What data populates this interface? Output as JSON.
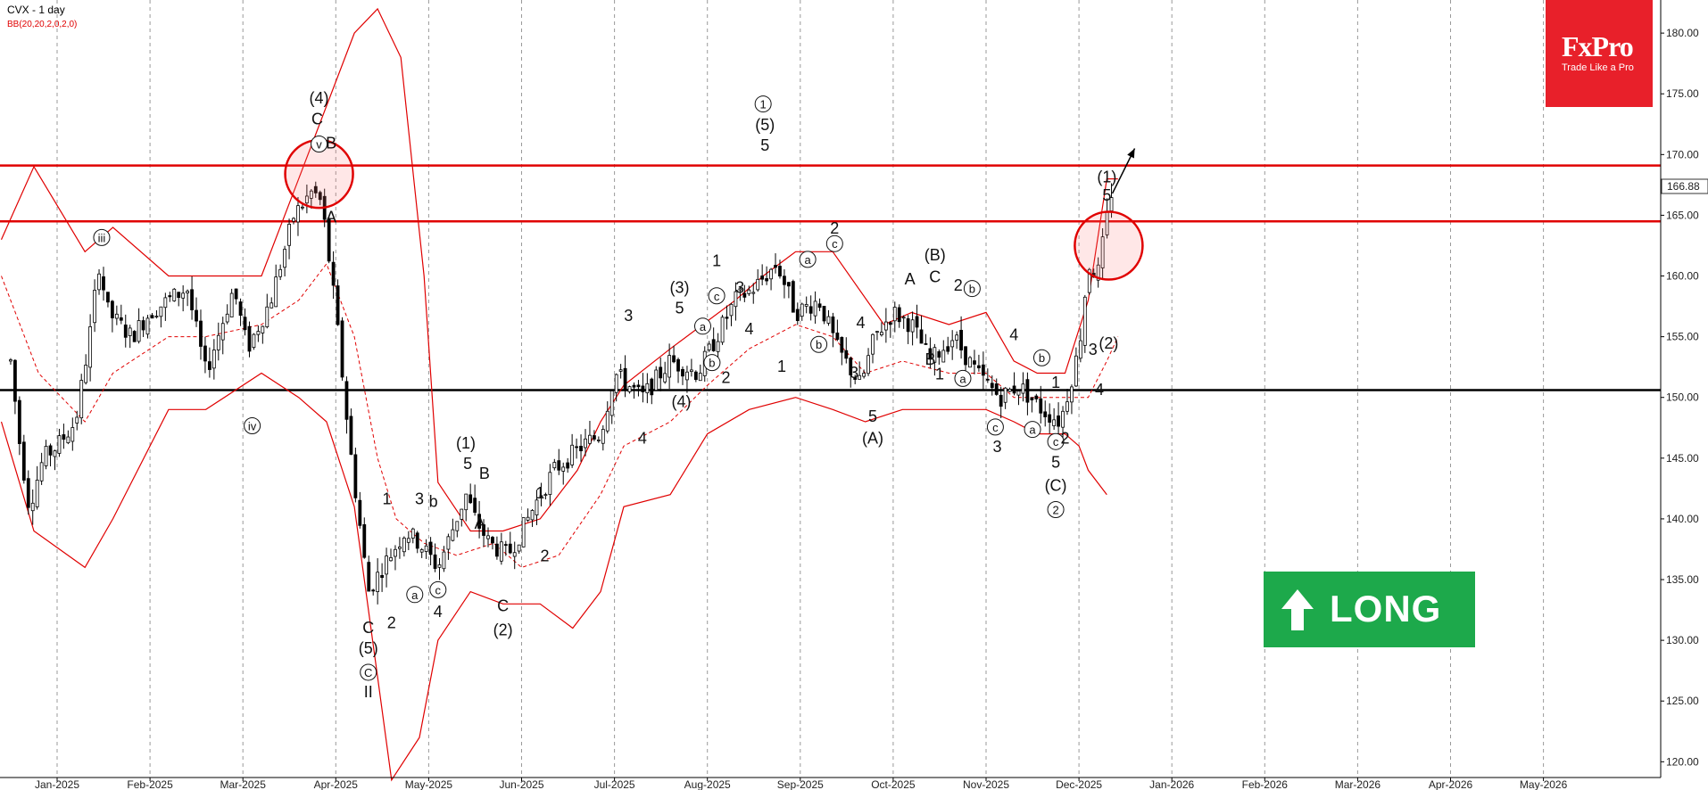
{
  "header": {
    "title": "CVX - 1 day",
    "indicator": "BB(20,20,2,0,2,0)"
  },
  "logo": {
    "brand": "FxPro",
    "tagline": "Trade Like a Pro"
  },
  "signal": {
    "label": "LONG",
    "icon": "up-arrow-icon",
    "color": "#1da94b"
  },
  "price_label": "166.88",
  "chart_data": {
    "type": "candlestick",
    "ylim": [
      118,
      183
    ],
    "y_ticks": [
      "180.00",
      "175.00",
      "170.00",
      "165.00",
      "160.00",
      "155.00",
      "150.00",
      "145.00",
      "140.00",
      "135.00",
      "130.00",
      "125.00",
      "120.00"
    ],
    "x_ticks": [
      "Jan-2025",
      "Feb-2025",
      "Mar-2025",
      "Apr-2025",
      "May-2025",
      "Jun-2025",
      "Jul-2025",
      "Aug-2025",
      "Sep-2025",
      "Oct-2025",
      "Nov-2025",
      "Dec-2025",
      "Jan-2026",
      "Feb-2026",
      "Mar-2026",
      "Apr-2026",
      "May-2026"
    ],
    "horizontal_levels": [
      {
        "value": 169.1,
        "color": "#e00000"
      },
      {
        "value": 164.5,
        "color": "#e00000"
      },
      {
        "value": 150.6,
        "color": "#000000"
      }
    ],
    "price_path": [
      [
        -0.5,
        153
      ],
      [
        -0.4,
        146
      ],
      [
        -0.3,
        141
      ],
      [
        -0.15,
        145
      ],
      [
        0,
        146
      ],
      [
        0.2,
        148
      ],
      [
        0.35,
        155
      ],
      [
        0.45,
        161
      ],
      [
        0.55,
        157
      ],
      [
        0.8,
        155
      ],
      [
        1.0,
        157
      ],
      [
        1.4,
        159
      ],
      [
        1.6,
        152
      ],
      [
        1.9,
        159
      ],
      [
        2.05,
        154
      ],
      [
        2.3,
        158
      ],
      [
        2.55,
        165
      ],
      [
        2.75,
        167
      ],
      [
        2.85,
        166
      ],
      [
        3.0,
        157
      ],
      [
        3.15,
        146
      ],
      [
        3.35,
        134
      ],
      [
        3.5,
        136
      ],
      [
        3.75,
        139
      ],
      [
        3.9,
        138
      ],
      [
        4.1,
        136
      ],
      [
        4.25,
        139
      ],
      [
        4.4,
        142
      ],
      [
        4.5,
        140
      ],
      [
        4.65,
        138
      ],
      [
        4.85,
        137
      ],
      [
        5.0,
        139
      ],
      [
        5.2,
        142
      ],
      [
        5.35,
        144
      ],
      [
        5.65,
        146
      ],
      [
        5.85,
        147
      ],
      [
        6.0,
        152
      ],
      [
        6.3,
        150
      ],
      [
        6.6,
        153
      ],
      [
        6.9,
        152
      ],
      [
        7.1,
        155
      ],
      [
        7.3,
        158
      ],
      [
        7.5,
        159
      ],
      [
        7.75,
        161
      ],
      [
        7.95,
        157
      ],
      [
        8.2,
        158
      ],
      [
        8.4,
        154
      ],
      [
        8.65,
        151
      ],
      [
        8.8,
        155
      ],
      [
        9.0,
        157
      ],
      [
        9.2,
        156
      ],
      [
        9.4,
        153
      ],
      [
        9.65,
        155
      ],
      [
        9.9,
        152
      ],
      [
        10.15,
        150
      ],
      [
        10.35,
        151
      ],
      [
        10.6,
        149
      ],
      [
        10.8,
        148
      ],
      [
        11.0,
        154
      ],
      [
        11.1,
        161
      ],
      [
        11.2,
        160
      ],
      [
        11.35,
        166.9
      ]
    ],
    "bollinger": {
      "upper": [
        [
          -0.6,
          163
        ],
        [
          -0.25,
          169
        ],
        [
          0.3,
          162
        ],
        [
          0.6,
          164
        ],
        [
          1.2,
          160
        ],
        [
          1.6,
          160
        ],
        [
          2.2,
          160
        ],
        [
          2.5,
          166
        ],
        [
          2.8,
          172
        ],
        [
          3.2,
          180
        ],
        [
          3.45,
          182
        ],
        [
          3.7,
          178
        ],
        [
          3.95,
          160
        ],
        [
          4.1,
          143
        ],
        [
          4.45,
          139
        ],
        [
          4.8,
          139
        ],
        [
          5.2,
          140
        ],
        [
          5.6,
          144
        ],
        [
          5.85,
          148
        ],
        [
          6.1,
          151
        ],
        [
          6.6,
          154
        ],
        [
          6.95,
          156
        ],
        [
          7.3,
          158
        ],
        [
          7.6,
          160
        ],
        [
          7.95,
          162
        ],
        [
          8.35,
          162
        ],
        [
          8.9,
          156
        ],
        [
          9.2,
          157
        ],
        [
          9.6,
          156
        ],
        [
          10.0,
          157
        ],
        [
          10.3,
          153
        ],
        [
          10.55,
          152
        ],
        [
          10.85,
          152
        ],
        [
          11.1,
          158
        ],
        [
          11.3,
          168
        ],
        [
          11.42,
          168
        ]
      ],
      "lower": [
        [
          -0.6,
          148
        ],
        [
          -0.25,
          139
        ],
        [
          0.3,
          136
        ],
        [
          0.6,
          140
        ],
        [
          1.2,
          149
        ],
        [
          1.6,
          149
        ],
        [
          2.2,
          152
        ],
        [
          2.6,
          150
        ],
        [
          2.9,
          148
        ],
        [
          3.2,
          141
        ],
        [
          3.45,
          127
        ],
        [
          3.6,
          118.5
        ],
        [
          3.9,
          122
        ],
        [
          4.1,
          130
        ],
        [
          4.45,
          134
        ],
        [
          4.8,
          133
        ],
        [
          5.2,
          133
        ],
        [
          5.55,
          131
        ],
        [
          5.85,
          134
        ],
        [
          6.1,
          141
        ],
        [
          6.6,
          142
        ],
        [
          7.0,
          147
        ],
        [
          7.45,
          149
        ],
        [
          7.95,
          150
        ],
        [
          8.35,
          149
        ],
        [
          8.7,
          148
        ],
        [
          9.1,
          149
        ],
        [
          9.6,
          149
        ],
        [
          10.0,
          149
        ],
        [
          10.3,
          148
        ],
        [
          10.55,
          147
        ],
        [
          10.85,
          147
        ],
        [
          11.0,
          146
        ],
        [
          11.1,
          144
        ],
        [
          11.3,
          142
        ]
      ],
      "mid": [
        [
          -0.6,
          160
        ],
        [
          -0.2,
          152
        ],
        [
          0.3,
          148
        ],
        [
          0.6,
          152
        ],
        [
          1.2,
          155
        ],
        [
          1.6,
          155
        ],
        [
          2.2,
          156
        ],
        [
          2.6,
          158
        ],
        [
          2.9,
          161
        ],
        [
          3.2,
          155
        ],
        [
          3.45,
          145
        ],
        [
          3.65,
          140
        ],
        [
          3.95,
          138
        ],
        [
          4.3,
          137
        ],
        [
          4.7,
          138
        ],
        [
          5.0,
          136
        ],
        [
          5.4,
          137
        ],
        [
          5.85,
          142
        ],
        [
          6.1,
          146
        ],
        [
          6.6,
          148
        ],
        [
          7.0,
          151
        ],
        [
          7.45,
          154
        ],
        [
          7.95,
          156
        ],
        [
          8.35,
          155
        ],
        [
          8.7,
          152
        ],
        [
          9.1,
          153
        ],
        [
          9.6,
          152
        ],
        [
          10.0,
          152
        ],
        [
          10.3,
          150
        ],
        [
          10.55,
          150
        ],
        [
          10.9,
          150
        ],
        [
          11.1,
          150
        ],
        [
          11.3,
          153
        ],
        [
          11.42,
          155
        ]
      ]
    },
    "elliott_labels": [
      {
        "text": "(4)",
        "x": 2.82,
        "y": 174.2
      },
      {
        "text": "C",
        "x": 2.8,
        "y": 172.5
      },
      {
        "text": "v",
        "x": 2.82,
        "y": 170.5,
        "circled": true
      },
      {
        "text": "B",
        "x": 2.95,
        "y": 170.5
      },
      {
        "text": "A",
        "x": 2.95,
        "y": 164.4
      },
      {
        "text": "iii",
        "x": 0.48,
        "y": 162.8,
        "circled": true
      },
      {
        "text": "iv",
        "x": 2.1,
        "y": 147.3,
        "circled": true
      },
      {
        "text": "C",
        "x": 3.35,
        "y": 130.6
      },
      {
        "text": "(5)",
        "x": 3.35,
        "y": 128.9
      },
      {
        "text": "C",
        "x": 3.35,
        "y": 127,
        "circled": true
      },
      {
        "text": "II",
        "x": 3.35,
        "y": 125.3
      },
      {
        "text": "2",
        "x": 3.6,
        "y": 131
      },
      {
        "text": "1",
        "x": 3.55,
        "y": 141.2
      },
      {
        "text": "3",
        "x": 3.9,
        "y": 141.2
      },
      {
        "text": "b",
        "x": 4.05,
        "y": 141
      },
      {
        "text": "a",
        "x": 3.85,
        "y": 133.4,
        "circled": true
      },
      {
        "text": "c",
        "x": 4.1,
        "y": 133.8,
        "circled": true
      },
      {
        "text": "4",
        "x": 4.1,
        "y": 131.9
      },
      {
        "text": "(1)",
        "x": 4.4,
        "y": 145.8
      },
      {
        "text": "5",
        "x": 4.42,
        "y": 144.1
      },
      {
        "text": "B",
        "x": 4.6,
        "y": 143.3
      },
      {
        "text": "A",
        "x": 4.55,
        "y": 139.2
      },
      {
        "text": "C",
        "x": 4.8,
        "y": 132.4
      },
      {
        "text": "(2)",
        "x": 4.8,
        "y": 130.4
      },
      {
        "text": "1",
        "x": 5.2,
        "y": 141.7
      },
      {
        "text": "2",
        "x": 5.25,
        "y": 136.5
      },
      {
        "text": "3",
        "x": 6.15,
        "y": 156.3
      },
      {
        "text": "4",
        "x": 6.3,
        "y": 146.2
      },
      {
        "text": "(3)",
        "x": 6.7,
        "y": 158.6
      },
      {
        "text": "5",
        "x": 6.7,
        "y": 156.9
      },
      {
        "text": "(4)",
        "x": 6.72,
        "y": 149.2
      },
      {
        "text": "a",
        "x": 6.95,
        "y": 155.5,
        "circled": true
      },
      {
        "text": "c",
        "x": 7.1,
        "y": 158,
        "circled": true
      },
      {
        "text": "1",
        "x": 7.1,
        "y": 160.8
      },
      {
        "text": "b",
        "x": 7.05,
        "y": 152.5,
        "circled": true
      },
      {
        "text": "2",
        "x": 7.2,
        "y": 151.2
      },
      {
        "text": "3",
        "x": 7.35,
        "y": 158.6
      },
      {
        "text": "4",
        "x": 7.45,
        "y": 155.2
      },
      {
        "text": "1",
        "x": 7.6,
        "y": 173.8,
        "circled": true
      },
      {
        "text": "(5)",
        "x": 7.62,
        "y": 172
      },
      {
        "text": "5",
        "x": 7.62,
        "y": 170.3
      },
      {
        "text": "1",
        "x": 7.8,
        "y": 152.1
      },
      {
        "text": "a",
        "x": 8.08,
        "y": 161,
        "circled": true
      },
      {
        "text": "b",
        "x": 8.2,
        "y": 154,
        "circled": true
      },
      {
        "text": "2",
        "x": 8.37,
        "y": 163.5
      },
      {
        "text": "c",
        "x": 8.37,
        "y": 162.3,
        "circled": true
      },
      {
        "text": "4",
        "x": 8.65,
        "y": 155.7
      },
      {
        "text": "3",
        "x": 8.58,
        "y": 151.6
      },
      {
        "text": "5",
        "x": 8.78,
        "y": 148
      },
      {
        "text": "(A)",
        "x": 8.78,
        "y": 146.2
      },
      {
        "text": "A",
        "x": 9.18,
        "y": 159.3
      },
      {
        "text": "(B)",
        "x": 9.45,
        "y": 161.3
      },
      {
        "text": "C",
        "x": 9.45,
        "y": 159.5
      },
      {
        "text": "B",
        "x": 9.4,
        "y": 152.7
      },
      {
        "text": "1",
        "x": 9.5,
        "y": 151.5
      },
      {
        "text": "2",
        "x": 9.7,
        "y": 158.8
      },
      {
        "text": "b",
        "x": 9.85,
        "y": 158.6,
        "circled": true
      },
      {
        "text": "a",
        "x": 9.75,
        "y": 151.2,
        "circled": true
      },
      {
        "text": "4",
        "x": 10.3,
        "y": 154.7
      },
      {
        "text": "c",
        "x": 10.1,
        "y": 147.2,
        "circled": true
      },
      {
        "text": "3",
        "x": 10.12,
        "y": 145.5
      },
      {
        "text": "a",
        "x": 10.5,
        "y": 147,
        "circled": true
      },
      {
        "text": "b",
        "x": 10.6,
        "y": 152.9,
        "circled": true
      },
      {
        "text": "1",
        "x": 10.75,
        "y": 150.8
      },
      {
        "text": "c",
        "x": 10.75,
        "y": 146,
        "circled": true
      },
      {
        "text": "2",
        "x": 10.85,
        "y": 146.2
      },
      {
        "text": "5",
        "x": 10.75,
        "y": 144.2
      },
      {
        "text": "(C)",
        "x": 10.75,
        "y": 142.3
      },
      {
        "text": "2",
        "x": 10.75,
        "y": 140.4,
        "circled": true
      },
      {
        "text": "3",
        "x": 11.15,
        "y": 153.5
      },
      {
        "text": "4",
        "x": 11.22,
        "y": 150.2
      },
      {
        "text": "(2)",
        "x": 11.32,
        "y": 154
      },
      {
        "text": "(1)",
        "x": 11.3,
        "y": 167.7
      },
      {
        "text": "5",
        "x": 11.3,
        "y": 166.2
      }
    ],
    "highlight_circles": [
      {
        "x": 2.82,
        "y": 168.4,
        "color": "#e00000"
      },
      {
        "x": 11.32,
        "y": 162.5,
        "color": "#e00000"
      }
    ],
    "projection": {
      "from": [
        11.36,
        166.8
      ],
      "to": [
        11.6,
        170.5
      ]
    }
  }
}
